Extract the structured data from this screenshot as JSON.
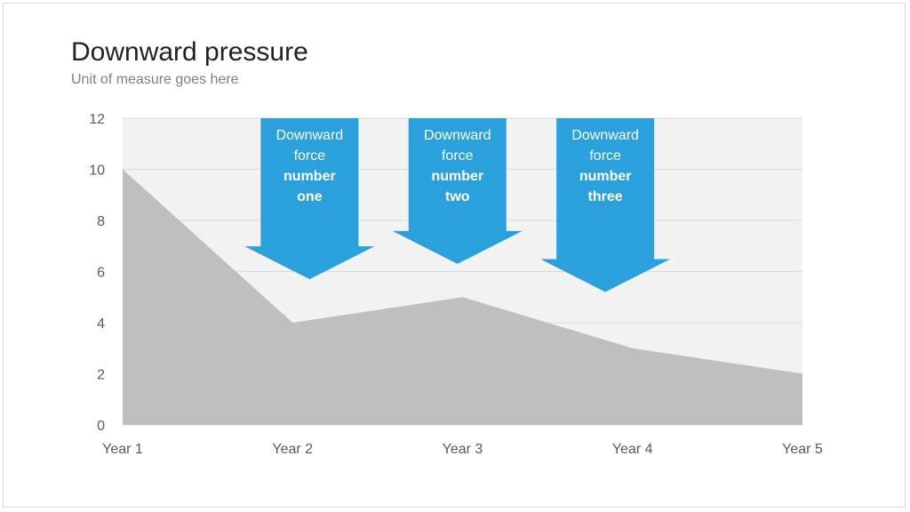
{
  "slide": {
    "title": "Downward pressure",
    "subtitle": "Unit of measure goes here"
  },
  "chart_data": {
    "type": "area",
    "title": "Downward pressure",
    "subtitle": "Unit of measure goes here",
    "categories": [
      "Year 1",
      "Year 2",
      "Year 3",
      "Year 4",
      "Year 5"
    ],
    "series": [
      {
        "values": [
          10,
          4,
          5,
          3,
          2
        ]
      }
    ],
    "ylim": [
      0,
      12
    ],
    "yticks": [
      0,
      2,
      4,
      6,
      8,
      10,
      12
    ],
    "grid": true,
    "colors": {
      "area": "#bfbfbf",
      "plot_background": "#f2f2f2",
      "gridline": "#d9d9d9",
      "arrow": "#2aa1dd"
    },
    "annotations": [
      {
        "lines": [
          "Downward",
          "force"
        ],
        "bold_lines": [
          "number",
          "one"
        ],
        "x_position": 1.1,
        "tip_value": 5.7
      },
      {
        "lines": [
          "Downward",
          "force"
        ],
        "bold_lines": [
          "number",
          "two"
        ],
        "x_position": 1.97,
        "tip_value": 6.3
      },
      {
        "lines": [
          "Downward",
          "force"
        ],
        "bold_lines": [
          "number",
          "three"
        ],
        "x_position": 2.84,
        "tip_value": 5.2
      }
    ]
  }
}
